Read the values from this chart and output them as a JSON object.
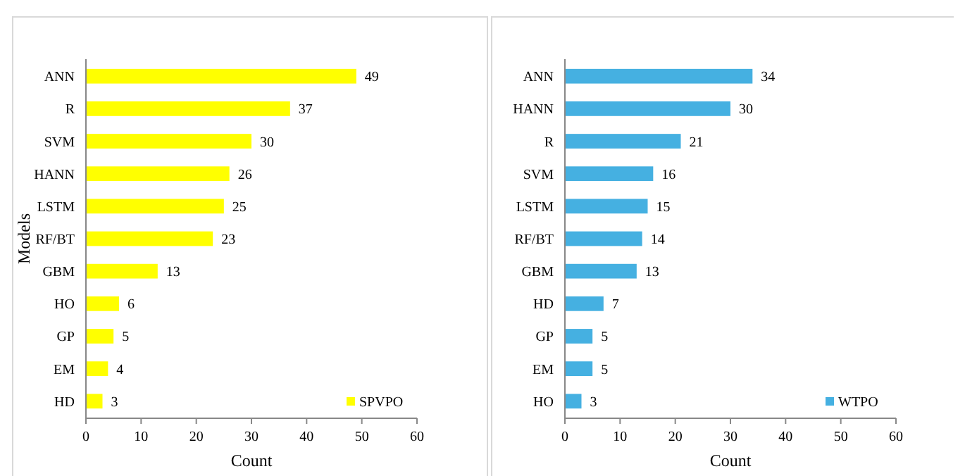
{
  "chart_data": [
    {
      "type": "bar",
      "orientation": "horizontal",
      "categories": [
        "ANN",
        "R",
        "SVM",
        "HANN",
        "LSTM",
        "RF/BT",
        "GBM",
        "HO",
        "GP",
        "EM",
        "HD"
      ],
      "series": [
        {
          "name": "SPVPO",
          "color": "#ffff00",
          "values": [
            49,
            37,
            30,
            26,
            25,
            23,
            13,
            6,
            5,
            4,
            3
          ]
        }
      ],
      "xlim": [
        0,
        60
      ],
      "xticks": [
        0,
        10,
        20,
        30,
        40,
        50,
        60
      ],
      "xlabel": "Count",
      "ylabel": "Models",
      "data_labels": true,
      "legend": "bottom right",
      "grid": false
    },
    {
      "type": "bar",
      "orientation": "horizontal",
      "categories": [
        "ANN",
        "HANN",
        "R",
        "SVM",
        "LSTM",
        "RF/BT",
        "GBM",
        "HD",
        "GP",
        "EM",
        "HO"
      ],
      "series": [
        {
          "name": "WTPO",
          "color": "#45b0e1",
          "values": [
            34,
            30,
            21,
            16,
            15,
            14,
            13,
            7,
            5,
            5,
            3
          ]
        }
      ],
      "xlim": [
        0,
        60
      ],
      "xticks": [
        0,
        10,
        20,
        30,
        40,
        50,
        60
      ],
      "xlabel": "Count",
      "data_labels": true,
      "legend": "bottom right",
      "grid": false
    }
  ]
}
